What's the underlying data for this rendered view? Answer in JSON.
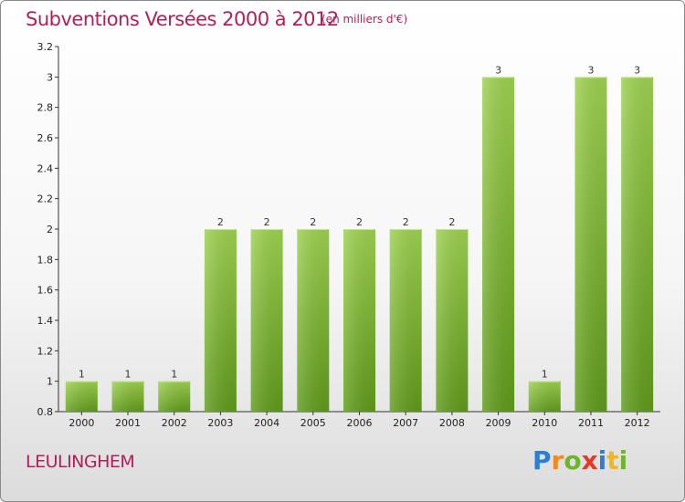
{
  "header": {
    "title": "Subventions Versées 2000 à 2012",
    "unit": "(en milliers d'€)"
  },
  "footer": {
    "commune": "LEULINGHEM",
    "brand": "Proxiti",
    "brand_letters": [
      {
        "ch": "P",
        "color": "#2a7fd4"
      },
      {
        "ch": "r",
        "color": "#f08a1c"
      },
      {
        "ch": "o",
        "color": "#6cb52d"
      },
      {
        "ch": "x",
        "color": "#e33b2a"
      },
      {
        "ch": "i",
        "color": "#2a7fd4"
      },
      {
        "ch": "t",
        "color": "#f0b81c"
      },
      {
        "ch": "i",
        "color": "#6cb52d"
      }
    ]
  },
  "colors": {
    "accent": "#b0205a",
    "bar_top": "#9dd14f",
    "bar_bottom": "#5f9a1a",
    "axis": "#333333"
  },
  "chart_data": {
    "type": "bar",
    "title": "Subventions Versées 2000 à 2012",
    "subtitle": "(en milliers d'€)",
    "xlabel": "",
    "ylabel": "",
    "categories": [
      "2000",
      "2001",
      "2002",
      "2003",
      "2004",
      "2005",
      "2006",
      "2007",
      "2008",
      "2009",
      "2010",
      "2011",
      "2012"
    ],
    "values": [
      1,
      1,
      1,
      2,
      2,
      2,
      2,
      2,
      2,
      3,
      1,
      3,
      3
    ],
    "ylim": [
      0.8,
      3.2
    ],
    "yticks": [
      0.8,
      1,
      1.2,
      1.4,
      1.6,
      1.8,
      2,
      2.2,
      2.4,
      2.6,
      2.8,
      3,
      3.2
    ],
    "ytick_labels": [
      "0.8",
      "1",
      "1.2",
      "1.4",
      "1.6",
      "1.8",
      "2",
      "2.2",
      "2.4",
      "2.6",
      "2.8",
      "3",
      "3.2"
    ],
    "data_labels": [
      "1",
      "1",
      "1",
      "2",
      "2",
      "2",
      "2",
      "2",
      "2",
      "3",
      "1",
      "3",
      "3"
    ],
    "grid": false,
    "legend": "none"
  }
}
